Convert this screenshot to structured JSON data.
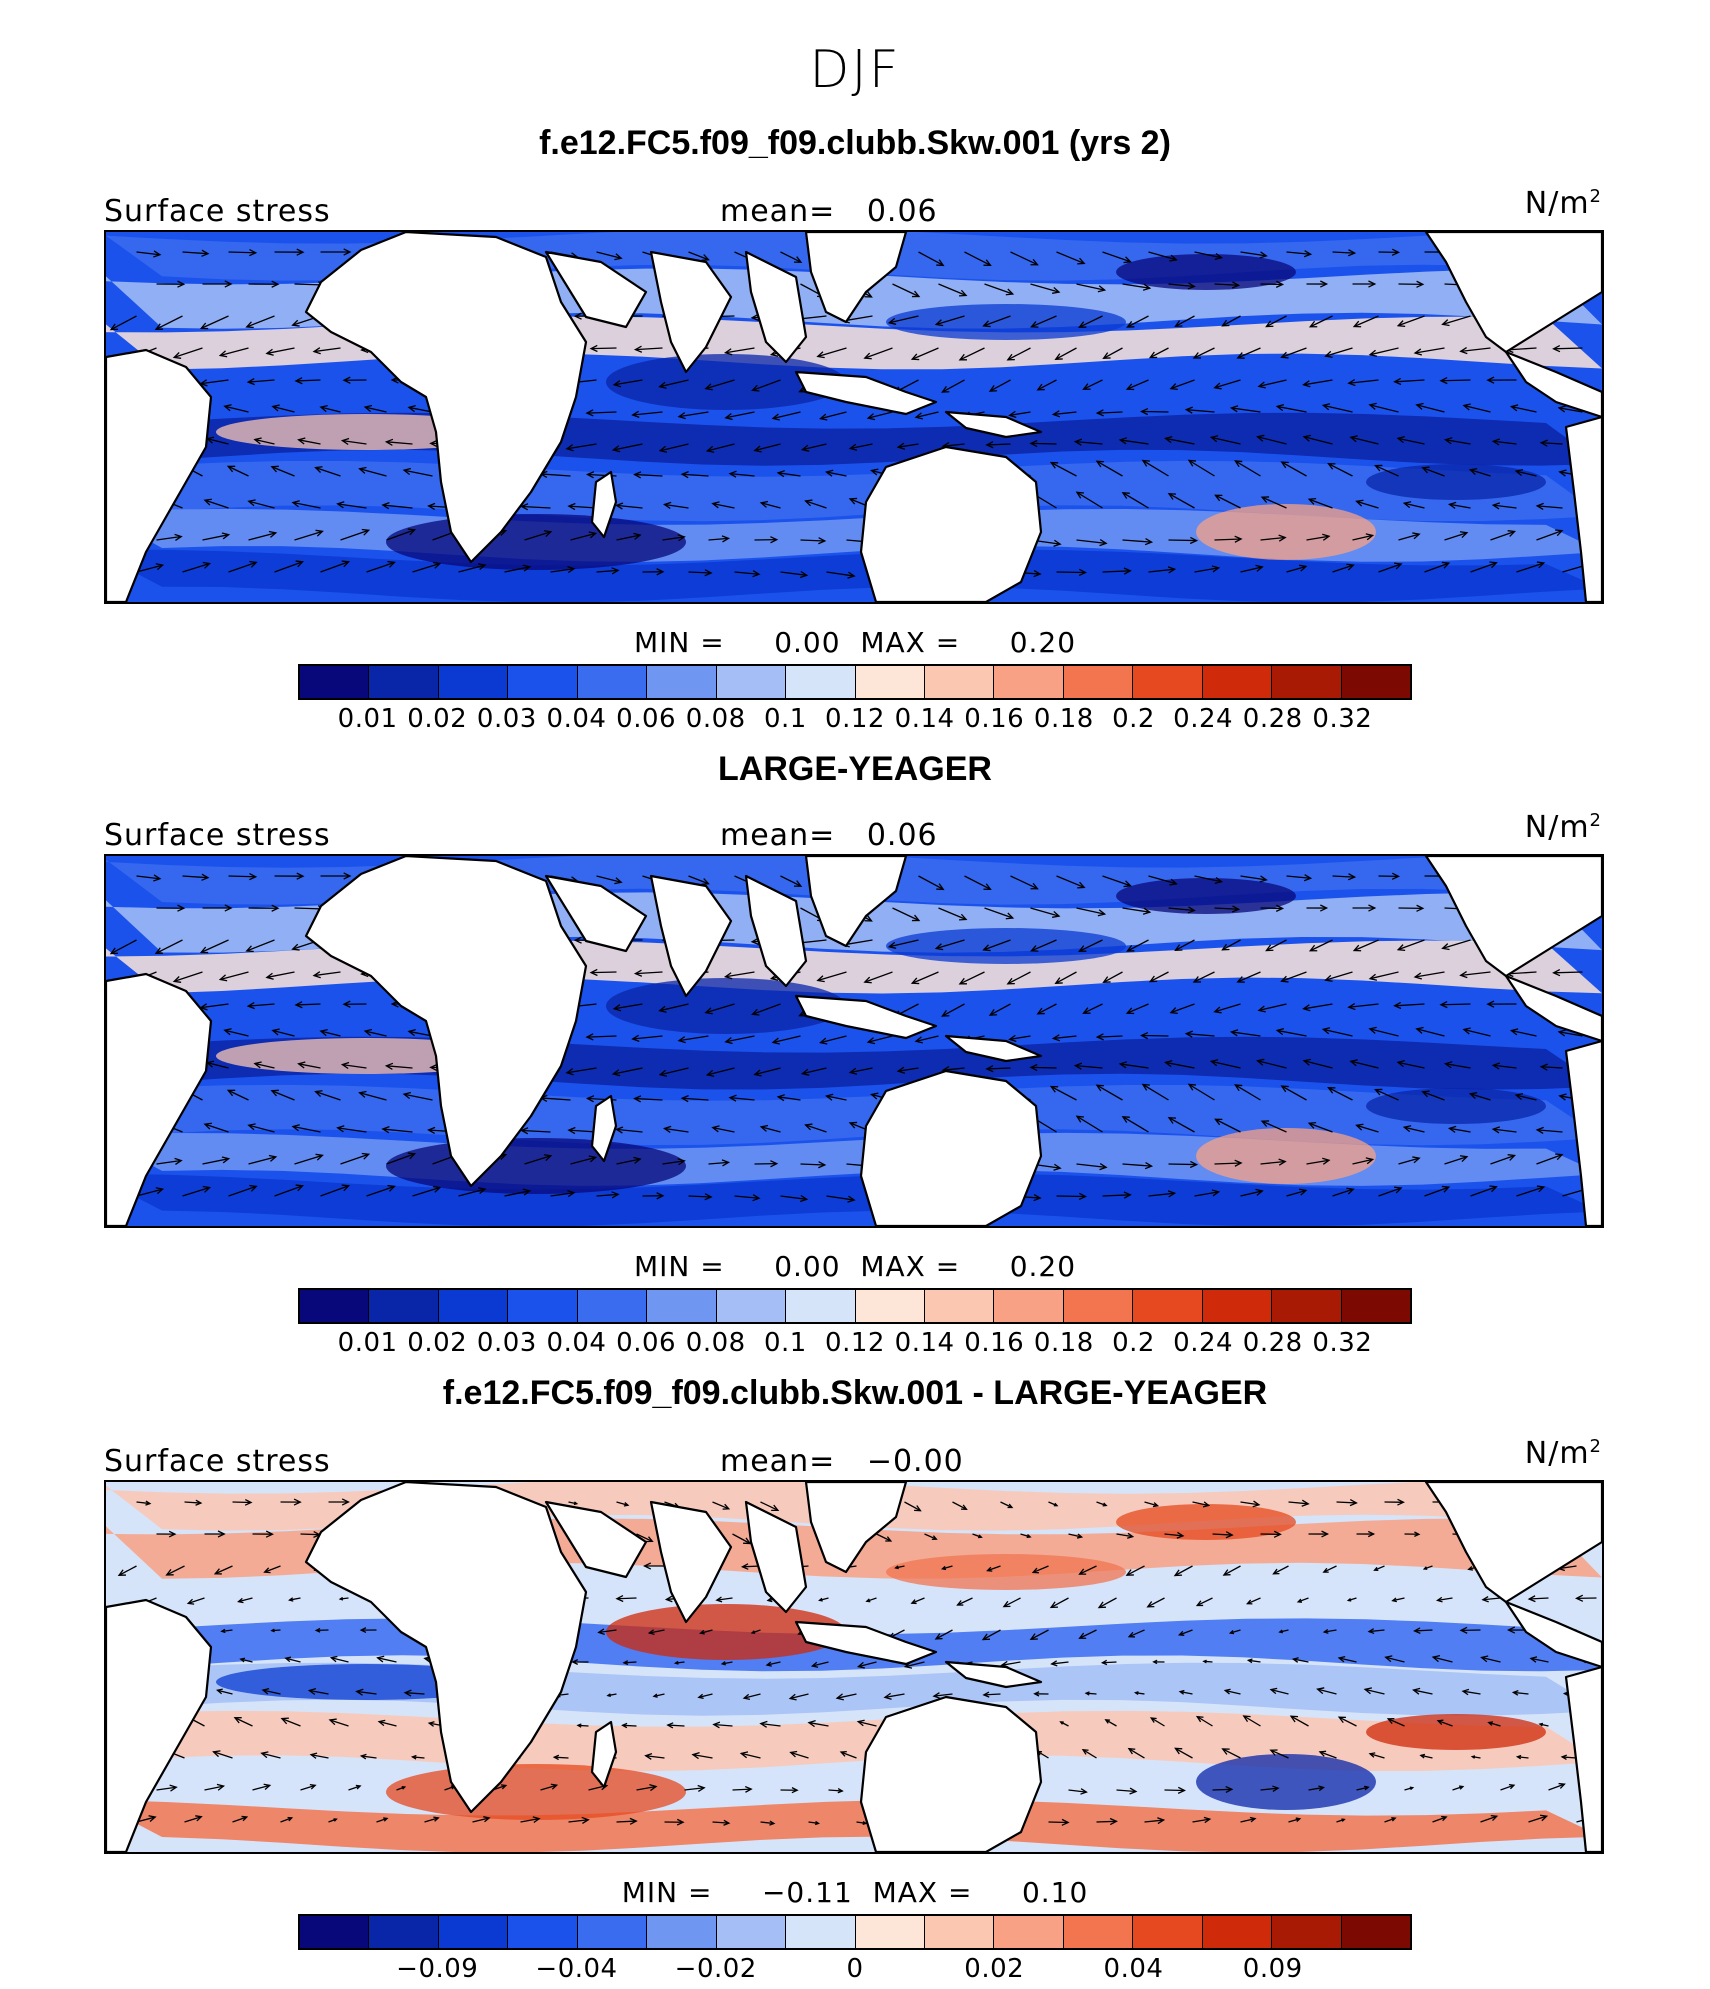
{
  "season_title": "DJF",
  "colors": {
    "land": "#ffffff",
    "coast": "#000000",
    "palette": [
      "#08087a",
      "#0a26a8",
      "#0a3ad2",
      "#1c52ec",
      "#3a6cf0",
      "#6f97f2",
      "#a5bff6",
      "#d6e4fa",
      "#fde6d8",
      "#fbc7b1",
      "#f8a184",
      "#f27550",
      "#e6491f",
      "#cf2a0a",
      "#a91a05",
      "#7d0a02"
    ]
  },
  "panels": [
    {
      "title": "f.e12.FC5.f09_f09.clubb.Skw.001 (yrs 2)",
      "field_label": "Surface stress",
      "mean_label": "mean=",
      "mean_value": "0.06",
      "unit": "N/m",
      "unit_exp": "2",
      "min_label": "MIN =",
      "min_value": "0.00",
      "max_label": "MAX =",
      "max_value": "0.20",
      "ticks": [
        "0.01",
        "0.02",
        "0.03",
        "0.04",
        "0.06",
        "0.08",
        "0.1",
        "0.12",
        "0.14",
        "0.16",
        "0.18",
        "0.2",
        "0.24",
        "0.28",
        "0.32"
      ]
    },
    {
      "title": "LARGE-YEAGER",
      "field_label": "Surface stress",
      "mean_label": "mean=",
      "mean_value": "0.06",
      "unit": "N/m",
      "unit_exp": "2",
      "min_label": "MIN =",
      "min_value": "0.00",
      "max_label": "MAX =",
      "max_value": "0.20",
      "ticks": [
        "0.01",
        "0.02",
        "0.03",
        "0.04",
        "0.06",
        "0.08",
        "0.1",
        "0.12",
        "0.14",
        "0.16",
        "0.18",
        "0.2",
        "0.24",
        "0.28",
        "0.32"
      ]
    },
    {
      "title": "f.e12.FC5.f09_f09.clubb.Skw.001 - LARGE-YEAGER",
      "field_label": "Surface stress",
      "mean_label": "mean=",
      "mean_value": "−0.00",
      "unit": "N/m",
      "unit_exp": "2",
      "min_label": "MIN =",
      "min_value": "−0.11",
      "max_label": "MAX =",
      "max_value": "0.10",
      "ticks": [
        "−0.09",
        "−0.04",
        "−0.02",
        "0",
        "0.02",
        "0.04",
        "0.09"
      ]
    }
  ]
}
